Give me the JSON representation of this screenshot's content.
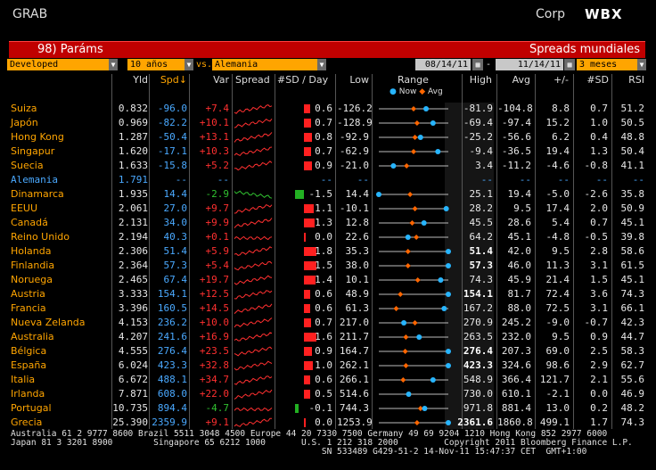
{
  "header": {
    "app": "GRAB",
    "corp": "Corp",
    "logo": "WBX"
  },
  "titlebar": {
    "left": "98) Paráms",
    "right": "Spreads mundiales"
  },
  "controls": {
    "region": "Developed",
    "tenor": "10 años",
    "vs_label": "vs.",
    "benchmark": "Alemania",
    "start_date": "08/14/11",
    "end_date": "11/14/11",
    "period": "3 meses"
  },
  "columns": {
    "yld": "Yld",
    "spd": "Spd↓",
    "var": "Var",
    "spread": "Spread",
    "sd_day": "#SD / Day",
    "low": "Low",
    "range": "Range",
    "high": "High",
    "avg": "Avg",
    "pm": "+/-",
    "sd": "#SD",
    "rsi": "RSI"
  },
  "legend": {
    "now": "Now",
    "avg": "Avg"
  },
  "colors": {
    "accent": "#ffa500",
    "now": "#27b5ff",
    "avg": "#ff6600",
    "negative": "#ff3030",
    "positive": "#30c030"
  },
  "rows": [
    {
      "name": "Suiza",
      "yld": "0.832",
      "spd": "-96.0",
      "var": "+7.4",
      "sd_day": "0.6",
      "low": "-126.2",
      "high": "-81.9",
      "avg": "-104.8",
      "pm": "8.8",
      "sd": "0.7",
      "rsi": "51.2",
      "bar": 0.6,
      "now": 0.68,
      "avgp": 0.5,
      "trend": "up"
    },
    {
      "name": "Japón",
      "yld": "0.969",
      "spd": "-82.2",
      "var": "+10.1",
      "sd_day": "0.7",
      "low": "-128.9",
      "high": "-69.4",
      "avg": "-97.4",
      "pm": "15.2",
      "sd": "1.0",
      "rsi": "50.5",
      "bar": 0.7,
      "now": 0.78,
      "avgp": 0.55,
      "trend": "up"
    },
    {
      "name": "Hong Kong",
      "yld": "1.287",
      "spd": "-50.4",
      "var": "+13.1",
      "sd_day": "0.8",
      "low": "-92.9",
      "high": "-25.2",
      "avg": "-56.6",
      "pm": "6.2",
      "sd": "0.4",
      "rsi": "48.8",
      "bar": 0.8,
      "now": 0.6,
      "avgp": 0.52,
      "trend": "up"
    },
    {
      "name": "Singapur",
      "yld": "1.620",
      "spd": "-17.1",
      "var": "+10.3",
      "sd_day": "0.7",
      "low": "-62.9",
      "high": "-9.4",
      "avg": "-36.5",
      "pm": "19.4",
      "sd": "1.3",
      "rsi": "50.4",
      "bar": 0.7,
      "now": 0.85,
      "avgp": 0.5,
      "trend": "up"
    },
    {
      "name": "Suecia",
      "yld": "1.633",
      "spd": "-15.8",
      "var": "+5.2",
      "sd_day": "0.9",
      "low": "-21.0",
      "high": "3.4",
      "avg": "-11.2",
      "pm": "-4.6",
      "sd": "-0.8",
      "rsi": "41.1",
      "bar": 0.9,
      "now": 0.21,
      "avgp": 0.4,
      "trend": "up"
    },
    {
      "name": "Alemania",
      "yld": "1.791",
      "spd": "--",
      "var": "--",
      "sd_day": "--",
      "low": "--",
      "high": "--",
      "avg": "--",
      "pm": "--",
      "sd": "--",
      "rsi": "--",
      "bar": 0,
      "now": -1,
      "avgp": -1,
      "trend": "none",
      "benchmark": true
    },
    {
      "name": "Dinamarca",
      "yld": "1.935",
      "spd": "14.4",
      "var": "-2.9",
      "sd_day": "-1.5",
      "low": "14.4",
      "high": "25.1",
      "avg": "19.4",
      "pm": "-5.0",
      "sd": "-2.6",
      "rsi": "35.8",
      "bar": -1,
      "now": 0.0,
      "avgp": 0.45,
      "trend": "down"
    },
    {
      "name": "EEUU",
      "yld": "2.061",
      "spd": "27.0",
      "var": "+9.7",
      "sd_day": "1.1",
      "low": "-10.1",
      "high": "28.2",
      "avg": "9.5",
      "pm": "17.4",
      "sd": "2.0",
      "rsi": "50.9",
      "bar": 1.1,
      "now": 0.97,
      "avgp": 0.52,
      "trend": "up"
    },
    {
      "name": "Canadá",
      "yld": "2.131",
      "spd": "34.0",
      "var": "+9.9",
      "sd_day": "1.3",
      "low": "12.8",
      "high": "45.5",
      "avg": "28.6",
      "pm": "5.4",
      "sd": "0.7",
      "rsi": "45.1",
      "bar": 1.3,
      "now": 0.65,
      "avgp": 0.48,
      "trend": "up"
    },
    {
      "name": "Reino Unido",
      "yld": "2.194",
      "spd": "40.3",
      "var": "+0.1",
      "sd_day": "0.0",
      "low": "22.6",
      "high": "64.2",
      "avg": "45.1",
      "pm": "-4.8",
      "sd": "-0.5",
      "rsi": "39.8",
      "bar": 0,
      "now": 0.42,
      "avgp": 0.54,
      "trend": "flat"
    },
    {
      "name": "Holanda",
      "yld": "2.306",
      "spd": "51.4",
      "var": "+5.9",
      "sd_day": "1.8",
      "low": "35.3",
      "high": "51.4",
      "avg": "42.0",
      "pm": "9.5",
      "sd": "2.8",
      "rsi": "58.6",
      "bar": 1.8,
      "now": 1.0,
      "avgp": 0.42,
      "trend": "up"
    },
    {
      "name": "Finlandia",
      "yld": "2.364",
      "spd": "57.3",
      "var": "+5.4",
      "sd_day": "1.5",
      "low": "38.0",
      "high": "57.3",
      "avg": "46.0",
      "pm": "11.3",
      "sd": "3.1",
      "rsi": "61.5",
      "bar": 1.5,
      "now": 1.0,
      "avgp": 0.42,
      "trend": "up"
    },
    {
      "name": "Noruega",
      "yld": "2.465",
      "spd": "67.4",
      "var": "+19.7",
      "sd_day": "1.4",
      "low": "10.1",
      "high": "74.3",
      "avg": "45.9",
      "pm": "21.4",
      "sd": "1.5",
      "rsi": "45.1",
      "bar": 1.4,
      "now": 0.89,
      "avgp": 0.56,
      "trend": "up"
    },
    {
      "name": "Austria",
      "yld": "3.333",
      "spd": "154.1",
      "var": "+12.5",
      "sd_day": "0.6",
      "low": "48.9",
      "high": "154.1",
      "avg": "81.7",
      "pm": "72.4",
      "sd": "3.6",
      "rsi": "74.3",
      "bar": 0.6,
      "now": 1.0,
      "avgp": 0.31,
      "trend": "up"
    },
    {
      "name": "Francia",
      "yld": "3.396",
      "spd": "160.5",
      "var": "+14.5",
      "sd_day": "0.6",
      "low": "61.3",
      "high": "167.2",
      "avg": "88.0",
      "pm": "72.5",
      "sd": "3.1",
      "rsi": "66.1",
      "bar": 0.6,
      "now": 0.94,
      "avgp": 0.25,
      "trend": "up"
    },
    {
      "name": "Nueva Zelanda",
      "yld": "4.153",
      "spd": "236.2",
      "var": "+10.0",
      "sd_day": "0.7",
      "low": "217.0",
      "high": "270.9",
      "avg": "245.2",
      "pm": "-9.0",
      "sd": "-0.7",
      "rsi": "42.3",
      "bar": 0.7,
      "now": 0.36,
      "avgp": 0.52,
      "trend": "up"
    },
    {
      "name": "Australia",
      "yld": "4.207",
      "spd": "241.6",
      "var": "+16.9",
      "sd_day": "1.6",
      "low": "211.7",
      "high": "263.5",
      "avg": "232.0",
      "pm": "9.5",
      "sd": "0.9",
      "rsi": "44.7",
      "bar": 1.6,
      "now": 0.58,
      "avgp": 0.39,
      "trend": "up"
    },
    {
      "name": "Bélgica",
      "yld": "4.555",
      "spd": "276.4",
      "var": "+23.5",
      "sd_day": "0.9",
      "low": "164.7",
      "high": "276.4",
      "avg": "207.3",
      "pm": "69.0",
      "sd": "2.5",
      "rsi": "58.3",
      "bar": 0.9,
      "now": 1.0,
      "avgp": 0.38,
      "trend": "up"
    },
    {
      "name": "España",
      "yld": "6.024",
      "spd": "423.3",
      "var": "+32.8",
      "sd_day": "1.0",
      "low": "262.1",
      "high": "423.3",
      "avg": "324.6",
      "pm": "98.6",
      "sd": "2.9",
      "rsi": "62.7",
      "bar": 1.0,
      "now": 1.0,
      "avgp": 0.39,
      "trend": "up"
    },
    {
      "name": "Italia",
      "yld": "6.672",
      "spd": "488.1",
      "var": "+34.7",
      "sd_day": "0.6",
      "low": "266.1",
      "high": "548.9",
      "avg": "366.4",
      "pm": "121.7",
      "sd": "2.1",
      "rsi": "55.6",
      "bar": 0.6,
      "now": 0.78,
      "avgp": 0.35,
      "trend": "up"
    },
    {
      "name": "Irlanda",
      "yld": "7.871",
      "spd": "608.0",
      "var": "+22.0",
      "sd_day": "0.5",
      "low": "514.6",
      "high": "730.0",
      "avg": "610.1",
      "pm": "-2.1",
      "sd": "0.0",
      "rsi": "46.9",
      "bar": 0.5,
      "now": 0.43,
      "avgp": 0.44,
      "trend": "up"
    },
    {
      "name": "Portugal",
      "yld": "10.735",
      "spd": "894.4",
      "var": "-4.7",
      "sd_day": "-0.1",
      "low": "744.3",
      "high": "971.8",
      "avg": "881.4",
      "pm": "13.0",
      "sd": "0.2",
      "rsi": "48.2",
      "bar": -0.1,
      "now": 0.66,
      "avgp": 0.6,
      "trend": "flat"
    },
    {
      "name": "Grecia",
      "yld": "25.390",
      "spd": "2359.9",
      "var": "+9.1",
      "sd_day": "0.0",
      "low": "1253.9",
      "high": "2361.6",
      "avg": "1860.8",
      "pm": "499.1",
      "sd": "1.7",
      "rsi": "74.3",
      "bar": 0,
      "now": 1.0,
      "avgp": 0.55,
      "trend": "up"
    }
  ],
  "footer": {
    "line1": "Australia 61 2 9777 8600 Brazil 5511 3048 4500 Europe 44 20 7330 7500 Germany 49 69 9204 1210 Hong Kong 852 2977 6000",
    "line2": "Japan 81 3 3201 8900        Singapore 65 6212 1000       U.S. 1 212 318 2000         Copyright 2011 Bloomberg Finance L.P.",
    "line3": "                                                             SN 533489 G429-51-2 14-Nov-11 15:47:37 CET  GMT+1:00"
  }
}
